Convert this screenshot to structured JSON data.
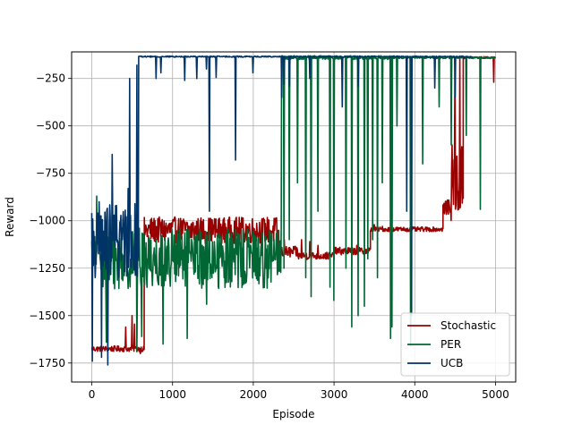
{
  "chart_data": {
    "type": "line",
    "title": "",
    "xlabel": "Episode",
    "ylabel": "Reward",
    "xlim": [
      -250,
      5250
    ],
    "ylim": [
      -1850,
      -110
    ],
    "xticks": [
      0,
      1000,
      2000,
      3000,
      4000,
      5000
    ],
    "yticks": [
      -1750,
      -1500,
      -1250,
      -1000,
      -750,
      -500,
      -250
    ],
    "xtick_labels": [
      "0",
      "1000",
      "2000",
      "3000",
      "4000",
      "5000"
    ],
    "ytick_labels": [
      "−1750",
      "−1500",
      "−1250",
      "−1000",
      "−750",
      "−500",
      "−250"
    ],
    "grid": true,
    "legend": {
      "position": "lower-right"
    },
    "series": [
      {
        "name": "Stochastic",
        "color": "#990000",
        "segments": [
          {
            "x_start": 0,
            "x_end": 650,
            "base": -1675,
            "noise": 15,
            "spikes": [
              [
                420,
                -1560
              ],
              [
                500,
                -1500
              ],
              [
                530,
                -1545
              ],
              [
                600,
                -1700
              ]
            ]
          },
          {
            "x_start": 650,
            "x_end": 2300,
            "base": -1050,
            "noise": 70,
            "spikes": []
          },
          {
            "x_start": 2300,
            "x_end": 2550,
            "base": -1165,
            "noise": 30,
            "spikes": [
              [
                2380,
                -1100
              ]
            ]
          },
          {
            "x_start": 2550,
            "x_end": 3000,
            "base": -1185,
            "noise": 20,
            "spikes": [
              [
                2600,
                -1100
              ],
              [
                2700,
                -1110
              ],
              [
                2800,
                -1130
              ]
            ]
          },
          {
            "x_start": 3000,
            "x_end": 3450,
            "base": -1160,
            "noise": 20,
            "spikes": [
              [
                3280,
                -1130
              ]
            ]
          },
          {
            "x_start": 3450,
            "x_end": 4350,
            "base": -1045,
            "noise": 12,
            "spikes": [
              [
                3500,
                -1020
              ],
              [
                3600,
                -1030
              ]
            ]
          },
          {
            "x_start": 4350,
            "x_end": 4450,
            "base": -930,
            "noise": 40,
            "spikes": [
              [
                4450,
                -1330
              ]
            ]
          },
          {
            "x_start": 4450,
            "x_end": 4600,
            "base": -800,
            "noise": 200,
            "spikes": [
              [
                4500,
                -150
              ],
              [
                4560,
                -140
              ]
            ]
          },
          {
            "x_start": 4600,
            "x_end": 5000,
            "base": -140,
            "noise": 5,
            "spikes": [
              [
                4980,
                -270
              ]
            ]
          }
        ]
      },
      {
        "name": "PER",
        "color": "#006633",
        "segments": [
          {
            "x_start": 0,
            "x_end": 2350,
            "base": -1200,
            "noise": 160,
            "spikes": [
              [
                60,
                -870
              ],
              [
                180,
                -1640
              ],
              [
                560,
                -1690
              ],
              [
                620,
                -1610
              ],
              [
                880,
                -1650
              ],
              [
                1180,
                -1620
              ],
              [
                1420,
                -1440
              ],
              [
                2200,
                -1050
              ]
            ]
          },
          {
            "x_start": 2350,
            "x_end": 3750,
            "base": -140,
            "noise": 10,
            "spikes": [
              [
                2380,
                -1250
              ],
              [
                2450,
                -1100
              ],
              [
                2550,
                -800
              ],
              [
                2650,
                -1300
              ],
              [
                2720,
                -1400
              ],
              [
                2800,
                -950
              ],
              [
                2950,
                -1350
              ],
              [
                3000,
                -1420
              ],
              [
                3150,
                -1250
              ],
              [
                3220,
                -1560
              ],
              [
                3300,
                -1500
              ],
              [
                3380,
                -1450
              ],
              [
                3420,
                -1200
              ],
              [
                3480,
                -1100
              ],
              [
                3540,
                -1300
              ],
              [
                3600,
                -800
              ],
              [
                3700,
                -1620
              ],
              [
                3720,
                -1560
              ]
            ]
          },
          {
            "x_start": 3750,
            "x_end": 5000,
            "base": -140,
            "noise": 5,
            "spikes": [
              [
                3780,
                -500
              ],
              [
                3950,
                -1660
              ],
              [
                4100,
                -700
              ],
              [
                4300,
                -400
              ],
              [
                4450,
                -600
              ],
              [
                4640,
                -550
              ],
              [
                4810,
                -940
              ]
            ]
          }
        ]
      },
      {
        "name": "UCB",
        "color": "#003366",
        "segments": [
          {
            "x_start": 0,
            "x_end": 580,
            "base": -1100,
            "noise": 200,
            "spikes": [
              [
                5,
                -1740
              ],
              [
                120,
                -1720
              ],
              [
                200,
                -1760
              ],
              [
                250,
                -650
              ],
              [
                450,
                -830
              ],
              [
                470,
                -250
              ],
              [
                560,
                -180
              ]
            ]
          },
          {
            "x_start": 580,
            "x_end": 2250,
            "base": -135,
            "noise": 3,
            "spikes": [
              [
                800,
                -250
              ],
              [
                860,
                -220
              ],
              [
                1150,
                -260
              ],
              [
                1300,
                -250
              ],
              [
                1420,
                -200
              ],
              [
                1460,
                -950
              ],
              [
                1540,
                -245
              ],
              [
                1780,
                -680
              ],
              [
                2000,
                -220
              ]
            ]
          },
          {
            "x_start": 2250,
            "x_end": 4720,
            "base": -135,
            "noise": 3,
            "spikes": [
              [
                2350,
                -350
              ],
              [
                2380,
                -280
              ],
              [
                2450,
                -290
              ],
              [
                2700,
                -250
              ],
              [
                3100,
                -400
              ],
              [
                3300,
                -290
              ],
              [
                3900,
                -950
              ],
              [
                3960,
                -1500
              ],
              [
                4250,
                -300
              ],
              [
                4500,
                -350
              ]
            ]
          }
        ]
      }
    ]
  }
}
